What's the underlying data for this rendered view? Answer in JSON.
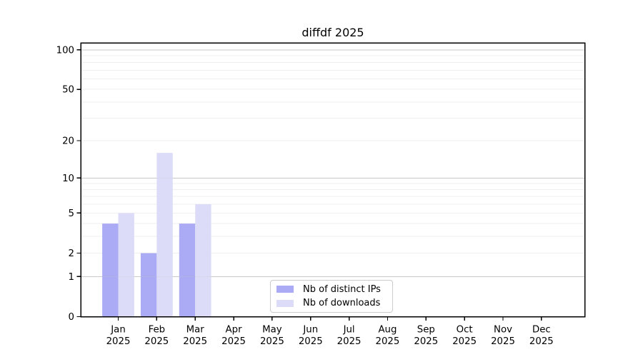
{
  "chart_data": {
    "type": "bar",
    "title": "diffdf 2025",
    "year_label": "2025",
    "categories": [
      "Jan",
      "Feb",
      "Mar",
      "Apr",
      "May",
      "Jun",
      "Jul",
      "Aug",
      "Sep",
      "Oct",
      "Nov",
      "Dec"
    ],
    "series": [
      {
        "name": "Nb of distinct IPs",
        "color": "#aaaaf5",
        "values": [
          4,
          2,
          4,
          0,
          0,
          0,
          0,
          0,
          0,
          0,
          0,
          0
        ]
      },
      {
        "name": "Nb of downloads",
        "color": "#dcdcf8",
        "values": [
          5,
          16,
          6,
          0,
          0,
          0,
          0,
          0,
          0,
          0,
          0,
          0
        ]
      }
    ],
    "xlabel": "",
    "ylabel": "",
    "yscale": "log1p",
    "ylim": [
      0,
      113
    ],
    "yticks": [
      0,
      1,
      2,
      5,
      10,
      20,
      50,
      100
    ],
    "major_gridlines": [
      1,
      10,
      100
    ],
    "minor_gridlines": [
      2,
      3,
      4,
      5,
      6,
      7,
      8,
      9,
      20,
      30,
      40,
      50,
      60,
      70,
      80,
      90
    ],
    "grid": "horizontal",
    "legend_position": "lower center inside plot"
  },
  "colors": {
    "background": "#ffffff",
    "spine": "#000000",
    "text": "#000000",
    "grid_major": "#c9c9c9",
    "grid_minor": "#efefef",
    "legend_border": "#cccccc"
  }
}
